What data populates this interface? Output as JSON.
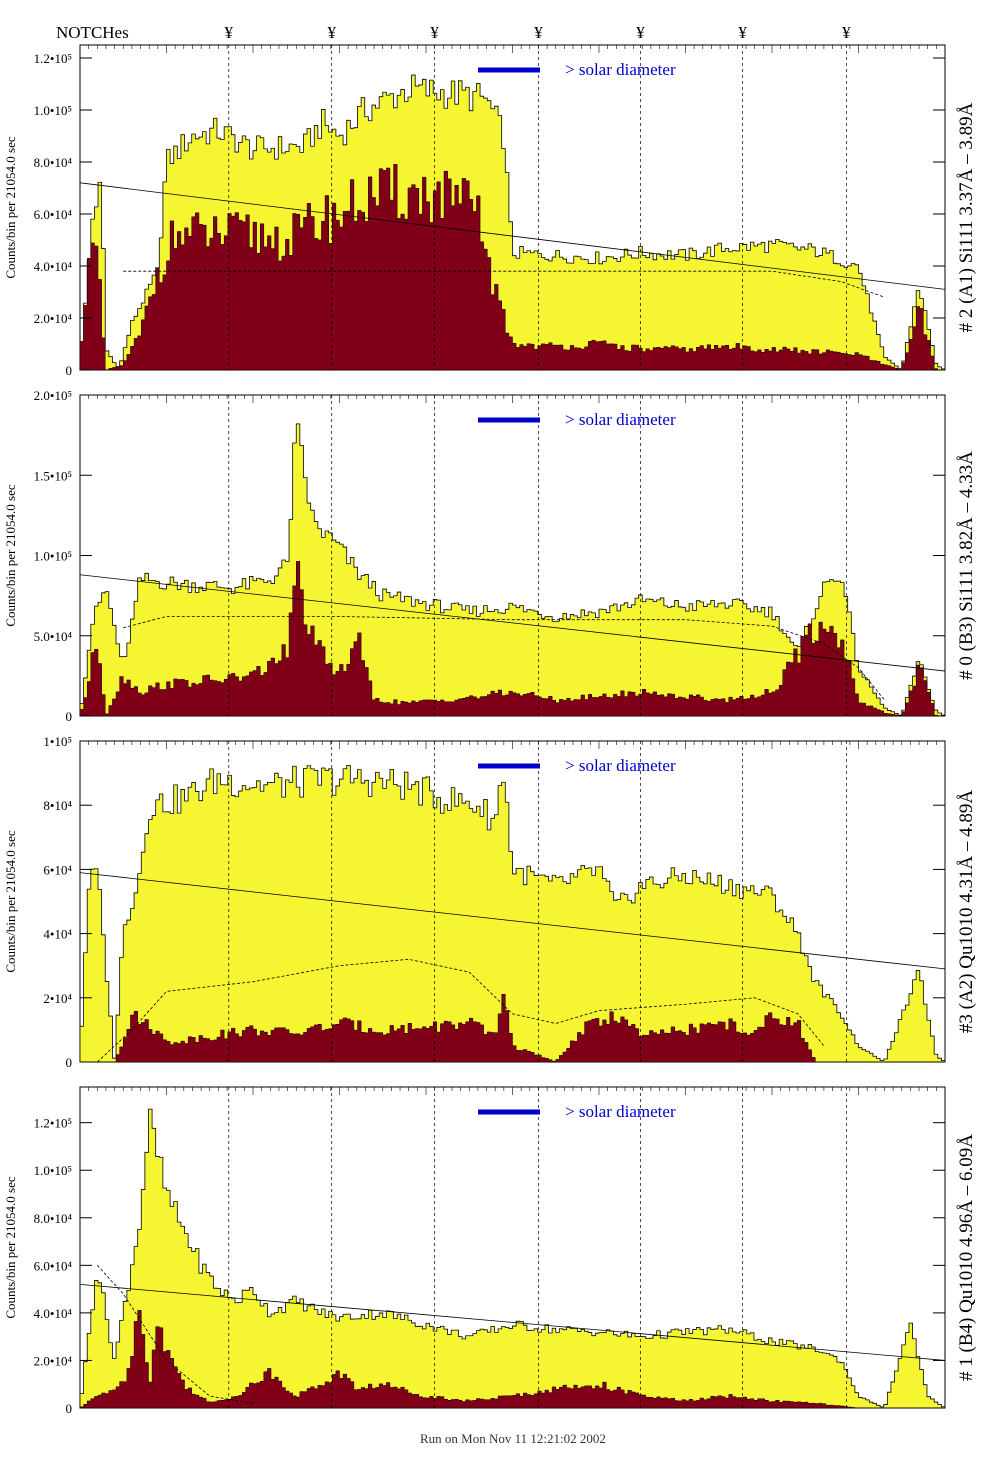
{
  "header": {
    "notches_label": "NOTCHes",
    "notch_symbol": "¥"
  },
  "footer": {
    "run_label": "Run on Mon Nov 11 12:21:02 2002"
  },
  "colors": {
    "yellow": "#f5f532",
    "maroon": "#800018",
    "blue": "#0000cc"
  },
  "notch_x": [
    0.172,
    0.291,
    0.41,
    0.53,
    0.648,
    0.766,
    0.886
  ],
  "chart_data": [
    {
      "type": "area",
      "title": "# 2 (A1) Si111  3.37Å – 3.89Å",
      "ylabel": "Counts/bin per  21054.0 sec",
      "annotation": "> solar diameter",
      "ylim": [
        0,
        125000
      ],
      "yticks": [
        {
          "v": 0,
          "label": "0"
        },
        {
          "v": 20000,
          "label": "2.0•10⁴"
        },
        {
          "v": 40000,
          "label": "4.0•10⁴"
        },
        {
          "v": 60000,
          "label": "6.0•10⁴"
        },
        {
          "v": 80000,
          "label": "8.0•10⁴"
        },
        {
          "v": 100000,
          "label": "1.0•10⁵"
        },
        {
          "v": 120000,
          "label": "1.2•10⁵"
        }
      ],
      "yellow": [
        [
          0,
          0
        ],
        [
          0.015,
          60000
        ],
        [
          0.025,
          72000
        ],
        [
          0.03,
          8000
        ],
        [
          0.045,
          0
        ],
        [
          0.06,
          18000
        ],
        [
          0.09,
          38000
        ],
        [
          0.1,
          80000
        ],
        [
          0.13,
          90000
        ],
        [
          0.16,
          92000
        ],
        [
          0.2,
          85000
        ],
        [
          0.26,
          86000
        ],
        [
          0.28,
          95000
        ],
        [
          0.3,
          90000
        ],
        [
          0.33,
          100000
        ],
        [
          0.38,
          108000
        ],
        [
          0.44,
          106000
        ],
        [
          0.47,
          104000
        ],
        [
          0.49,
          90000
        ],
        [
          0.5,
          45000
        ],
        [
          0.55,
          44000
        ],
        [
          0.6,
          43000
        ],
        [
          0.65,
          45000
        ],
        [
          0.7,
          44000
        ],
        [
          0.75,
          47000
        ],
        [
          0.8,
          48000
        ],
        [
          0.85,
          46000
        ],
        [
          0.9,
          40000
        ],
        [
          0.93,
          5000
        ],
        [
          0.95,
          0
        ],
        [
          0.97,
          33000
        ],
        [
          0.99,
          2000
        ],
        [
          1,
          0
        ]
      ],
      "maroon": [
        [
          0,
          0
        ],
        [
          0.01,
          48000
        ],
        [
          0.02,
          42000
        ],
        [
          0.03,
          0
        ],
        [
          0.05,
          2000
        ],
        [
          0.07,
          14000
        ],
        [
          0.09,
          38000
        ],
        [
          0.11,
          52000
        ],
        [
          0.15,
          52000
        ],
        [
          0.2,
          52000
        ],
        [
          0.24,
          50000
        ],
        [
          0.26,
          54000
        ],
        [
          0.28,
          58000
        ],
        [
          0.3,
          60000
        ],
        [
          0.33,
          66000
        ],
        [
          0.38,
          68000
        ],
        [
          0.43,
          66000
        ],
        [
          0.46,
          60000
        ],
        [
          0.48,
          30000
        ],
        [
          0.5,
          10000
        ],
        [
          0.55,
          9000
        ],
        [
          0.6,
          10000
        ],
        [
          0.65,
          8000
        ],
        [
          0.7,
          8000
        ],
        [
          0.75,
          9000
        ],
        [
          0.8,
          8000
        ],
        [
          0.85,
          7000
        ],
        [
          0.9,
          6000
        ],
        [
          0.93,
          2000
        ],
        [
          0.95,
          0
        ],
        [
          0.97,
          24000
        ],
        [
          0.99,
          0
        ],
        [
          1,
          0
        ]
      ],
      "fit_line": [
        [
          0,
          72000
        ],
        [
          1,
          31000
        ]
      ],
      "dashed": [
        [
          0.05,
          38000
        ],
        [
          0.2,
          38000
        ],
        [
          0.5,
          38000
        ],
        [
          0.8,
          38000
        ],
        [
          0.88,
          34000
        ],
        [
          0.93,
          28000
        ]
      ]
    },
    {
      "type": "area",
      "title": "# 0 (B3) Si111  3.82Å – 4.33Å",
      "ylabel": "Counts/bin per  21054.0 sec",
      "annotation": "> solar diameter",
      "ylim": [
        0,
        200000
      ],
      "yticks": [
        {
          "v": 0,
          "label": "0"
        },
        {
          "v": 50000,
          "label": "5.0•10⁴"
        },
        {
          "v": 100000,
          "label": "1.0•10⁵"
        },
        {
          "v": 150000,
          "label": "1.5•10⁵"
        },
        {
          "v": 200000,
          "label": "2.0•10⁵"
        }
      ],
      "yellow": [
        [
          0,
          0
        ],
        [
          0.015,
          60000
        ],
        [
          0.03,
          80000
        ],
        [
          0.05,
          30000
        ],
        [
          0.07,
          85000
        ],
        [
          0.12,
          82000
        ],
        [
          0.18,
          80000
        ],
        [
          0.22,
          85000
        ],
        [
          0.24,
          95000
        ],
        [
          0.25,
          180000
        ],
        [
          0.27,
          120000
        ],
        [
          0.3,
          105000
        ],
        [
          0.32,
          90000
        ],
        [
          0.35,
          75000
        ],
        [
          0.4,
          70000
        ],
        [
          0.45,
          65000
        ],
        [
          0.5,
          68000
        ],
        [
          0.55,
          62000
        ],
        [
          0.6,
          65000
        ],
        [
          0.65,
          72000
        ],
        [
          0.7,
          68000
        ],
        [
          0.75,
          70000
        ],
        [
          0.8,
          65000
        ],
        [
          0.83,
          40000
        ],
        [
          0.86,
          80000
        ],
        [
          0.88,
          90000
        ],
        [
          0.9,
          30000
        ],
        [
          0.93,
          5000
        ],
        [
          0.95,
          0
        ],
        [
          0.97,
          35000
        ],
        [
          0.99,
          3000
        ],
        [
          1,
          0
        ]
      ],
      "maroon": [
        [
          0,
          0
        ],
        [
          0.01,
          20000
        ],
        [
          0.02,
          50000
        ],
        [
          0.03,
          0
        ],
        [
          0.05,
          25000
        ],
        [
          0.07,
          15000
        ],
        [
          0.1,
          20000
        ],
        [
          0.15,
          22000
        ],
        [
          0.2,
          25000
        ],
        [
          0.24,
          40000
        ],
        [
          0.25,
          90000
        ],
        [
          0.27,
          45000
        ],
        [
          0.3,
          25000
        ],
        [
          0.32,
          50000
        ],
        [
          0.34,
          10000
        ],
        [
          0.38,
          8000
        ],
        [
          0.42,
          10000
        ],
        [
          0.46,
          12000
        ],
        [
          0.5,
          15000
        ],
        [
          0.55,
          10000
        ],
        [
          0.6,
          12000
        ],
        [
          0.65,
          15000
        ],
        [
          0.7,
          12000
        ],
        [
          0.75,
          10000
        ],
        [
          0.8,
          15000
        ],
        [
          0.82,
          30000
        ],
        [
          0.85,
          55000
        ],
        [
          0.88,
          50000
        ],
        [
          0.9,
          10000
        ],
        [
          0.93,
          2000
        ],
        [
          0.95,
          0
        ],
        [
          0.97,
          30000
        ],
        [
          0.99,
          0
        ],
        [
          1,
          0
        ]
      ],
      "fit_line": [
        [
          0,
          88000
        ],
        [
          1,
          28000
        ]
      ],
      "dashed": [
        [
          0.05,
          55000
        ],
        [
          0.1,
          62000
        ],
        [
          0.2,
          62000
        ],
        [
          0.3,
          62000
        ],
        [
          0.5,
          60000
        ],
        [
          0.7,
          60000
        ],
        [
          0.8,
          56000
        ],
        [
          0.86,
          45000
        ],
        [
          0.9,
          30000
        ],
        [
          0.93,
          10000
        ]
      ]
    },
    {
      "type": "area",
      "title": "#3 (A2) Qu1010  4.31Å – 4.89Å",
      "ylabel": "Counts/bin per  21054.0 sec",
      "annotation": "> solar diameter",
      "ylim": [
        0,
        100000
      ],
      "yticks": [
        {
          "v": 0,
          "label": "0"
        },
        {
          "v": 20000,
          "label": "2•10⁴"
        },
        {
          "v": 40000,
          "label": "4•10⁴"
        },
        {
          "v": 60000,
          "label": "6•10⁴"
        },
        {
          "v": 80000,
          "label": "8•10⁴"
        },
        {
          "v": 100000,
          "label": "1•10⁵"
        }
      ],
      "yellow": [
        [
          0,
          0
        ],
        [
          0.01,
          55000
        ],
        [
          0.02,
          60000
        ],
        [
          0.03,
          30000
        ],
        [
          0.04,
          0
        ],
        [
          0.05,
          40000
        ],
        [
          0.07,
          60000
        ],
        [
          0.08,
          80000
        ],
        [
          0.12,
          82000
        ],
        [
          0.16,
          88000
        ],
        [
          0.22,
          86000
        ],
        [
          0.28,
          88000
        ],
        [
          0.33,
          88000
        ],
        [
          0.38,
          86000
        ],
        [
          0.42,
          82000
        ],
        [
          0.46,
          80000
        ],
        [
          0.48,
          75000
        ],
        [
          0.49,
          92000
        ],
        [
          0.5,
          60000
        ],
        [
          0.55,
          55000
        ],
        [
          0.6,
          60000
        ],
        [
          0.62,
          48000
        ],
        [
          0.65,
          55000
        ],
        [
          0.7,
          58000
        ],
        [
          0.75,
          55000
        ],
        [
          0.8,
          52000
        ],
        [
          0.83,
          40000
        ],
        [
          0.85,
          25000
        ],
        [
          0.88,
          15000
        ],
        [
          0.9,
          5000
        ],
        [
          0.93,
          0
        ],
        [
          0.97,
          28000
        ],
        [
          0.99,
          2000
        ],
        [
          1,
          0
        ]
      ],
      "maroon": [
        [
          0,
          0
        ],
        [
          0.04,
          0
        ],
        [
          0.06,
          14000
        ],
        [
          0.08,
          12000
        ],
        [
          0.1,
          6000
        ],
        [
          0.15,
          8000
        ],
        [
          0.2,
          10000
        ],
        [
          0.25,
          9000
        ],
        [
          0.3,
          12000
        ],
        [
          0.35,
          10000
        ],
        [
          0.4,
          11000
        ],
        [
          0.45,
          12000
        ],
        [
          0.48,
          8000
        ],
        [
          0.49,
          22000
        ],
        [
          0.5,
          5000
        ],
        [
          0.55,
          0
        ],
        [
          0.58,
          10000
        ],
        [
          0.62,
          15000
        ],
        [
          0.65,
          8000
        ],
        [
          0.7,
          10000
        ],
        [
          0.75,
          12000
        ],
        [
          0.78,
          8000
        ],
        [
          0.8,
          15000
        ],
        [
          0.83,
          12000
        ],
        [
          0.85,
          0
        ],
        [
          0.9,
          0
        ],
        [
          1,
          0
        ]
      ],
      "fit_line": [
        [
          0,
          59000
        ],
        [
          1,
          29000
        ]
      ],
      "dashed": [
        [
          0.02,
          0
        ],
        [
          0.06,
          10000
        ],
        [
          0.1,
          22000
        ],
        [
          0.2,
          25000
        ],
        [
          0.3,
          30000
        ],
        [
          0.38,
          32000
        ],
        [
          0.45,
          28000
        ],
        [
          0.5,
          15000
        ],
        [
          0.55,
          12000
        ],
        [
          0.6,
          16000
        ],
        [
          0.7,
          18000
        ],
        [
          0.78,
          20000
        ],
        [
          0.83,
          15000
        ],
        [
          0.86,
          5000
        ]
      ]
    },
    {
      "type": "area",
      "title": "# 1 (B4) Qu1010 4.96Å – 6.09Å",
      "ylabel": "Counts/bin per  21054.0 sec",
      "annotation": "> solar diameter",
      "ylim": [
        0,
        135000
      ],
      "yticks": [
        {
          "v": 0,
          "label": "0"
        },
        {
          "v": 20000,
          "label": "2.0•10⁴"
        },
        {
          "v": 40000,
          "label": "4.0•10⁴"
        },
        {
          "v": 60000,
          "label": "6.0•10⁴"
        },
        {
          "v": 80000,
          "label": "8.0•10⁴"
        },
        {
          "v": 100000,
          "label": "1.0•10⁵"
        },
        {
          "v": 120000,
          "label": "1.2•10⁵"
        }
      ],
      "yellow": [
        [
          0,
          0
        ],
        [
          0.01,
          30000
        ],
        [
          0.02,
          60000
        ],
        [
          0.03,
          40000
        ],
        [
          0.04,
          20000
        ],
        [
          0.05,
          40000
        ],
        [
          0.07,
          80000
        ],
        [
          0.08,
          122000
        ],
        [
          0.1,
          90000
        ],
        [
          0.12,
          75000
        ],
        [
          0.14,
          60000
        ],
        [
          0.16,
          50000
        ],
        [
          0.18,
          45000
        ],
        [
          0.2,
          50000
        ],
        [
          0.22,
          40000
        ],
        [
          0.25,
          45000
        ],
        [
          0.28,
          40000
        ],
        [
          0.3,
          38000
        ],
        [
          0.35,
          40000
        ],
        [
          0.4,
          35000
        ],
        [
          0.45,
          30000
        ],
        [
          0.5,
          35000
        ],
        [
          0.55,
          33000
        ],
        [
          0.6,
          32000
        ],
        [
          0.65,
          30000
        ],
        [
          0.7,
          32000
        ],
        [
          0.75,
          33000
        ],
        [
          0.8,
          28000
        ],
        [
          0.85,
          25000
        ],
        [
          0.88,
          20000
        ],
        [
          0.9,
          5000
        ],
        [
          0.93,
          0
        ],
        [
          0.96,
          35000
        ],
        [
          0.98,
          5000
        ],
        [
          1,
          0
        ]
      ],
      "maroon": [
        [
          0,
          0
        ],
        [
          0.02,
          5000
        ],
        [
          0.05,
          10000
        ],
        [
          0.06,
          25000
        ],
        [
          0.07,
          45000
        ],
        [
          0.08,
          10000
        ],
        [
          0.09,
          35000
        ],
        [
          0.1,
          25000
        ],
        [
          0.12,
          10000
        ],
        [
          0.15,
          2000
        ],
        [
          0.18,
          5000
        ],
        [
          0.22,
          15000
        ],
        [
          0.25,
          5000
        ],
        [
          0.28,
          10000
        ],
        [
          0.3,
          15000
        ],
        [
          0.32,
          8000
        ],
        [
          0.35,
          10000
        ],
        [
          0.4,
          5000
        ],
        [
          0.45,
          3000
        ],
        [
          0.5,
          5000
        ],
        [
          0.55,
          8000
        ],
        [
          0.6,
          10000
        ],
        [
          0.65,
          5000
        ],
        [
          0.7,
          3000
        ],
        [
          0.75,
          5000
        ],
        [
          0.8,
          3000
        ],
        [
          0.85,
          2000
        ],
        [
          0.9,
          0
        ],
        [
          1,
          0
        ]
      ],
      "fit_line": [
        [
          0,
          52000
        ],
        [
          1,
          20000
        ]
      ],
      "dashed": [
        [
          0.02,
          60000
        ],
        [
          0.05,
          48000
        ],
        [
          0.1,
          20000
        ],
        [
          0.15,
          5000
        ],
        [
          0.2,
          2000
        ]
      ]
    }
  ]
}
